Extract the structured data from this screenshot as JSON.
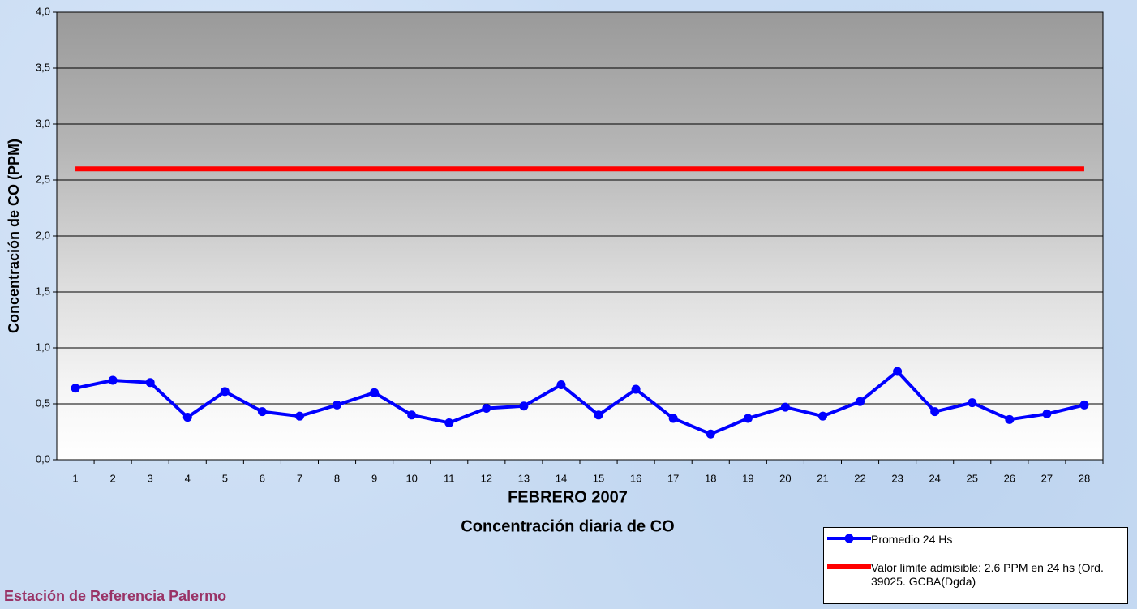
{
  "chart_data": {
    "type": "line",
    "title": "FEBRERO 2007",
    "subtitle": "Concentración diaria de CO",
    "y_label": "Concentración de CO (PPM)",
    "footer": "Estación de Referencia Palermo",
    "categories": [
      "1",
      "2",
      "3",
      "4",
      "5",
      "6",
      "7",
      "8",
      "9",
      "10",
      "11",
      "12",
      "13",
      "14",
      "15",
      "16",
      "17",
      "18",
      "19",
      "20",
      "21",
      "22",
      "23",
      "24",
      "25",
      "26",
      "27",
      "28"
    ],
    "series": [
      {
        "name": "Promedio 24 Hs",
        "color": "#0000ff",
        "markers": true,
        "values": [
          0.64,
          0.71,
          0.69,
          0.38,
          0.61,
          0.43,
          0.39,
          0.49,
          0.6,
          0.4,
          0.33,
          0.46,
          0.48,
          0.67,
          0.4,
          0.63,
          0.37,
          0.23,
          0.37,
          0.47,
          0.39,
          0.52,
          0.79,
          0.43,
          0.51,
          0.36,
          0.41,
          0.49
        ]
      },
      {
        "name": "Valor límite admisible: 2.6 PPM en 24 hs (Ord. 39025. GCBA(Dgda)",
        "color": "#ff0000",
        "markers": false,
        "values": [
          2.6,
          2.6,
          2.6,
          2.6,
          2.6,
          2.6,
          2.6,
          2.6,
          2.6,
          2.6,
          2.6,
          2.6,
          2.6,
          2.6,
          2.6,
          2.6,
          2.6,
          2.6,
          2.6,
          2.6,
          2.6,
          2.6,
          2.6,
          2.6,
          2.6,
          2.6,
          2.6,
          2.6
        ]
      }
    ],
    "ylim": [
      0,
      4
    ],
    "yticks": [
      {
        "value": 0,
        "label": "0,0"
      },
      {
        "value": 0.5,
        "label": "0,5"
      },
      {
        "value": 1,
        "label": "1,0"
      },
      {
        "value": 1.5,
        "label": "1,5"
      },
      {
        "value": 2,
        "label": "2,0"
      },
      {
        "value": 2.5,
        "label": "2,5"
      },
      {
        "value": 3,
        "label": "3,0"
      },
      {
        "value": 3.5,
        "label": "3,5"
      },
      {
        "value": 4,
        "label": "4,0"
      }
    ],
    "grid": true
  }
}
